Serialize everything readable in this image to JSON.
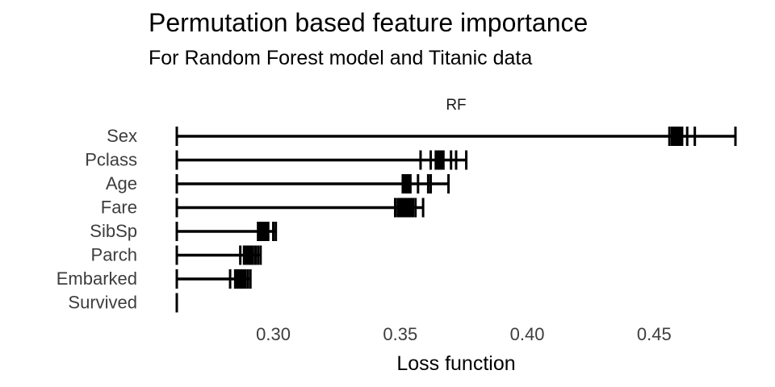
{
  "chart_data": {
    "type": "boxplot",
    "title": "Permutation based feature importance",
    "subtitle": "For Random Forest model and Titanic data",
    "facet_label": "RF",
    "xlabel": "Loss function",
    "ylabel": "",
    "baseline": 0.262,
    "xlim": [
      0.262,
      0.482
    ],
    "xticks": [
      0.3,
      0.35,
      0.4,
      0.45
    ],
    "xtick_labels": [
      "0.30",
      "0.35",
      "0.40",
      "0.45"
    ],
    "grid": false,
    "legend": "none",
    "line_color": "#000000",
    "features": [
      {
        "name": "Sex",
        "min": 0.456,
        "q1": 0.457,
        "median": 0.459,
        "q3": 0.461,
        "max": 0.482,
        "ticks": [
          0.456,
          0.457,
          0.458,
          0.459,
          0.46,
          0.461,
          0.463,
          0.466,
          0.482
        ]
      },
      {
        "name": "Pclass",
        "min": 0.358,
        "q1": 0.364,
        "median": 0.365,
        "q3": 0.367,
        "max": 0.376,
        "ticks": [
          0.358,
          0.362,
          0.364,
          0.365,
          0.366,
          0.367,
          0.37,
          0.372,
          0.376
        ]
      },
      {
        "name": "Age",
        "min": 0.351,
        "q1": 0.351,
        "median": 0.353,
        "q3": 0.354,
        "max": 0.369,
        "ticks": [
          0.351,
          0.352,
          0.353,
          0.354,
          0.357,
          0.361,
          0.362,
          0.369
        ]
      },
      {
        "name": "Fare",
        "min": 0.348,
        "q1": 0.349,
        "median": 0.353,
        "q3": 0.355,
        "max": 0.359,
        "ticks": [
          0.348,
          0.349,
          0.352,
          0.354,
          0.355,
          0.356,
          0.359
        ]
      },
      {
        "name": "SibSp",
        "min": 0.294,
        "q1": 0.294,
        "median": 0.297,
        "q3": 0.298,
        "max": 0.301,
        "ticks": [
          0.294,
          0.295,
          0.296,
          0.297,
          0.298,
          0.3,
          0.301
        ]
      },
      {
        "name": "Parch",
        "min": 0.287,
        "q1": 0.288,
        "median": 0.291,
        "q3": 0.292,
        "max": 0.295,
        "ticks": [
          0.287,
          0.289,
          0.291,
          0.292,
          0.293,
          0.294,
          0.295
        ]
      },
      {
        "name": "Embarked",
        "min": 0.283,
        "q1": 0.285,
        "median": 0.287,
        "q3": 0.289,
        "max": 0.291,
        "ticks": [
          0.283,
          0.285,
          0.286,
          0.287,
          0.288,
          0.289,
          0.29,
          0.291
        ]
      },
      {
        "name": "Survived",
        "min": 0.262,
        "q1": 0.262,
        "median": 0.262,
        "q3": 0.262,
        "max": 0.262,
        "ticks": [
          0.262
        ]
      }
    ]
  }
}
